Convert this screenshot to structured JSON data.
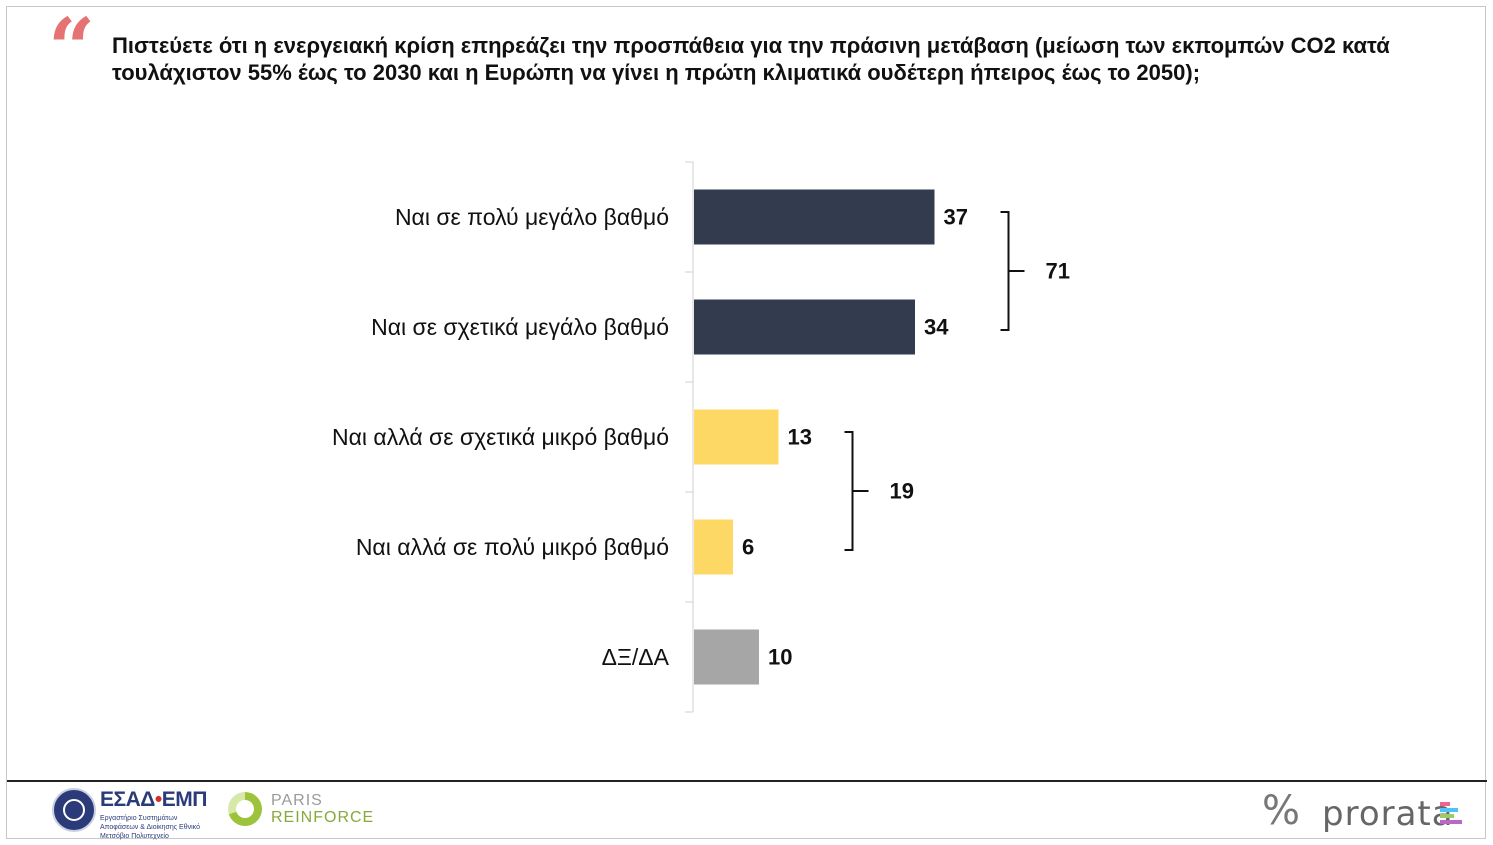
{
  "header": {
    "quote_mark": "“",
    "question": "Πιστεύετε ότι η ενεργειακή κρίση επηρεάζει την προσπάθεια για την πράσινη μετάβαση (μείωση των εκπομπών CO2 κατά τουλάχιστον 55% έως το 2030 και η Ευρώπη να γίνει η πρώτη κλιματικά ουδέτερη ήπειρος έως το 2050);"
  },
  "chart_data": {
    "type": "bar",
    "orientation": "horizontal",
    "categories": [
      "Ναι σε πολύ μεγάλο βαθμό",
      "Ναι σε σχετικά μεγάλο βαθμό",
      "Ναι αλλά σε σχετικά μικρό βαθμό",
      "Ναι αλλά σε πολύ μικρό βαθμό",
      "ΔΞ/ΔΑ"
    ],
    "values": [
      37,
      34,
      13,
      6,
      10
    ],
    "colors": [
      "#323c4e",
      "#323c4e",
      "#fdd865",
      "#fdd865",
      "#a6a6a6"
    ],
    "groups": [
      {
        "members": [
          0,
          1
        ],
        "total": "71"
      },
      {
        "members": [
          2,
          3
        ],
        "total": "19"
      }
    ],
    "grid": false,
    "legend": "none"
  },
  "footer": {
    "esad": {
      "name": "ΕΣΑΔ",
      "sep": "•",
      "name2": "ΕΜΠ",
      "subtitle": "Εργαστήριο Συστημάτων Αποφάσεων & Διοίκησης Εθνικό Μετσόβιο Πολυτεχνείο"
    },
    "paris": {
      "line1": "PARIS",
      "line2": "REINFORCE"
    },
    "prorata": {
      "icon": "%",
      "name": "prorata",
      "bar_colors": [
        "#f06292",
        "#4fc3f7",
        "#9ccc65",
        "#ba68c8"
      ]
    }
  }
}
